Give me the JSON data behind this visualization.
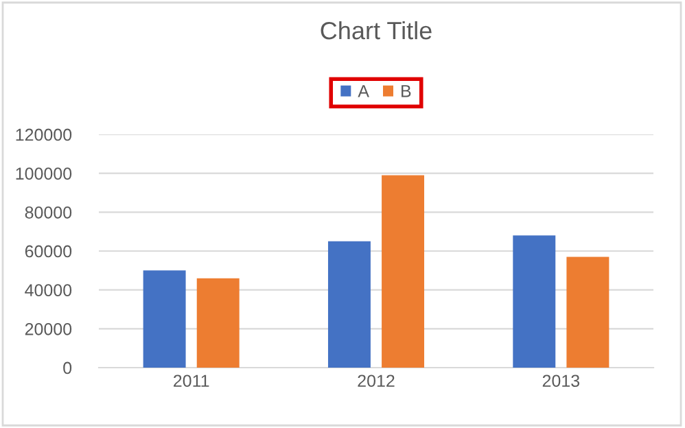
{
  "chart_data": {
    "type": "bar",
    "title": "Chart Title",
    "categories": [
      "2011",
      "2012",
      "2013"
    ],
    "series": [
      {
        "name": "A",
        "color": "#4472c4",
        "values": [
          50000,
          65000,
          68000
        ]
      },
      {
        "name": "B",
        "color": "#ed7d31",
        "values": [
          46000,
          99000,
          57000
        ]
      }
    ],
    "ylim": [
      0,
      120000
    ],
    "yticks": [
      0,
      20000,
      40000,
      60000,
      80000,
      100000,
      120000
    ],
    "grid": "y",
    "legend": "top"
  }
}
